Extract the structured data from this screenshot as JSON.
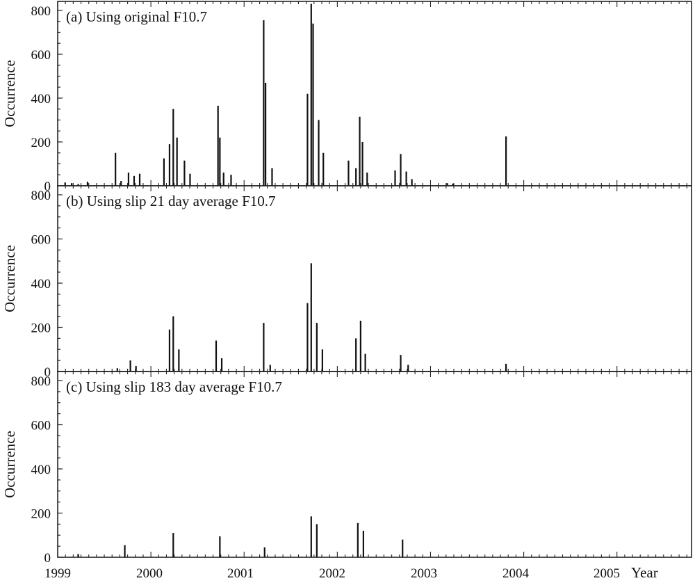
{
  "chart_data": [
    {
      "type": "bar",
      "panel_label": "(a) Using original F10.7",
      "ylabel": "Occurrence",
      "ylim": [
        0,
        800
      ],
      "yticks": [
        0,
        200,
        400,
        600,
        800
      ],
      "xlim": [
        1999.0,
        2005.8
      ],
      "bar_color": "#111111",
      "points": [
        [
          1999.08,
          15
        ],
        [
          1999.15,
          12
        ],
        [
          1999.22,
          8
        ],
        [
          1999.32,
          18
        ],
        [
          1999.62,
          150
        ],
        [
          1999.68,
          22
        ],
        [
          1999.76,
          60
        ],
        [
          1999.82,
          45
        ],
        [
          1999.88,
          55
        ],
        [
          2000.14,
          125
        ],
        [
          2000.2,
          190
        ],
        [
          2000.24,
          350
        ],
        [
          2000.28,
          220
        ],
        [
          2000.36,
          115
        ],
        [
          2000.42,
          55
        ],
        [
          2000.72,
          365
        ],
        [
          2000.74,
          220
        ],
        [
          2000.78,
          60
        ],
        [
          2000.86,
          50
        ],
        [
          2001.21,
          755
        ],
        [
          2001.23,
          470
        ],
        [
          2001.3,
          80
        ],
        [
          2001.68,
          420
        ],
        [
          2001.72,
          830
        ],
        [
          2001.74,
          740
        ],
        [
          2001.8,
          300
        ],
        [
          2001.85,
          150
        ],
        [
          2002.12,
          115
        ],
        [
          2002.2,
          80
        ],
        [
          2002.24,
          315
        ],
        [
          2002.27,
          200
        ],
        [
          2002.32,
          60
        ],
        [
          2002.62,
          70
        ],
        [
          2002.68,
          145
        ],
        [
          2002.74,
          65
        ],
        [
          2002.8,
          30
        ],
        [
          2003.18,
          12
        ],
        [
          2003.24,
          10
        ],
        [
          2003.81,
          225
        ]
      ]
    },
    {
      "type": "bar",
      "panel_label": "(b) Using slip 21 day average F10.7",
      "ylabel": "Occurrence",
      "ylim": [
        0,
        800
      ],
      "yticks": [
        0,
        200,
        400,
        600,
        800
      ],
      "xlim": [
        1999.0,
        2005.8
      ],
      "bar_color": "#111111",
      "points": [
        [
          1999.64,
          15
        ],
        [
          1999.78,
          50
        ],
        [
          1999.84,
          25
        ],
        [
          2000.2,
          190
        ],
        [
          2000.24,
          250
        ],
        [
          2000.3,
          100
        ],
        [
          2000.7,
          140
        ],
        [
          2000.76,
          60
        ],
        [
          2001.21,
          220
        ],
        [
          2001.28,
          30
        ],
        [
          2001.68,
          310
        ],
        [
          2001.72,
          490
        ],
        [
          2001.78,
          220
        ],
        [
          2001.84,
          100
        ],
        [
          2002.2,
          150
        ],
        [
          2002.25,
          230
        ],
        [
          2002.3,
          80
        ],
        [
          2002.68,
          75
        ],
        [
          2002.76,
          30
        ],
        [
          2003.81,
          35
        ]
      ]
    },
    {
      "type": "bar",
      "panel_label": "(c) Using slip 183 day average F10.7",
      "ylabel": "Occurrence",
      "ylim": [
        0,
        800
      ],
      "yticks": [
        0,
        200,
        400,
        600,
        800
      ],
      "xlim": [
        1999.0,
        2005.8
      ],
      "xlabel": "Year",
      "xtick_labels": [
        "1999",
        "2000",
        "2001",
        "2002",
        "2003",
        "2004",
        "2005"
      ],
      "bar_color": "#111111",
      "points": [
        [
          1999.22,
          15
        ],
        [
          1999.72,
          55
        ],
        [
          2000.24,
          110
        ],
        [
          2000.74,
          95
        ],
        [
          2001.22,
          45
        ],
        [
          2001.72,
          185
        ],
        [
          2001.78,
          150
        ],
        [
          2002.22,
          155
        ],
        [
          2002.28,
          120
        ],
        [
          2002.7,
          80
        ]
      ]
    }
  ]
}
